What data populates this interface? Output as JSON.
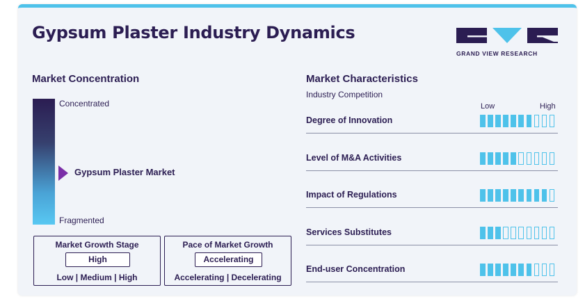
{
  "title": "Gypsum Plaster Industry Dynamics",
  "logo": {
    "text": "GRAND VIEW RESEARCH"
  },
  "market_concentration": {
    "heading": "Market Concentration",
    "top_label": "Concentrated",
    "bottom_label": "Fragmented",
    "marker_label": "Gypsum Plaster Market",
    "marker_level": 0.57
  },
  "growth_stage": {
    "title": "Market Growth Stage",
    "value": "High",
    "scale": "Low | Medium | High"
  },
  "growth_pace": {
    "title": "Pace of Market Growth",
    "value": "Accelerating",
    "scale": "Accelerating | Decelerating"
  },
  "characteristics": {
    "heading": "Market Characteristics",
    "subheading": "Industry Competition",
    "low_label": "Low",
    "high_label": "High",
    "max_level": 10,
    "rows": [
      {
        "label": "Degree of Innovation",
        "level": 7
      },
      {
        "label": "Level of M&A Activities",
        "level": 5
      },
      {
        "label": "Impact of Regulations",
        "level": 9
      },
      {
        "label": "Services Substitutes",
        "level": 3
      },
      {
        "label": "End-user Concentration",
        "level": 7
      }
    ]
  },
  "colors": {
    "dark": "#2b1d52",
    "accent": "#4ec2ea",
    "marker": "#7b2fa8"
  }
}
